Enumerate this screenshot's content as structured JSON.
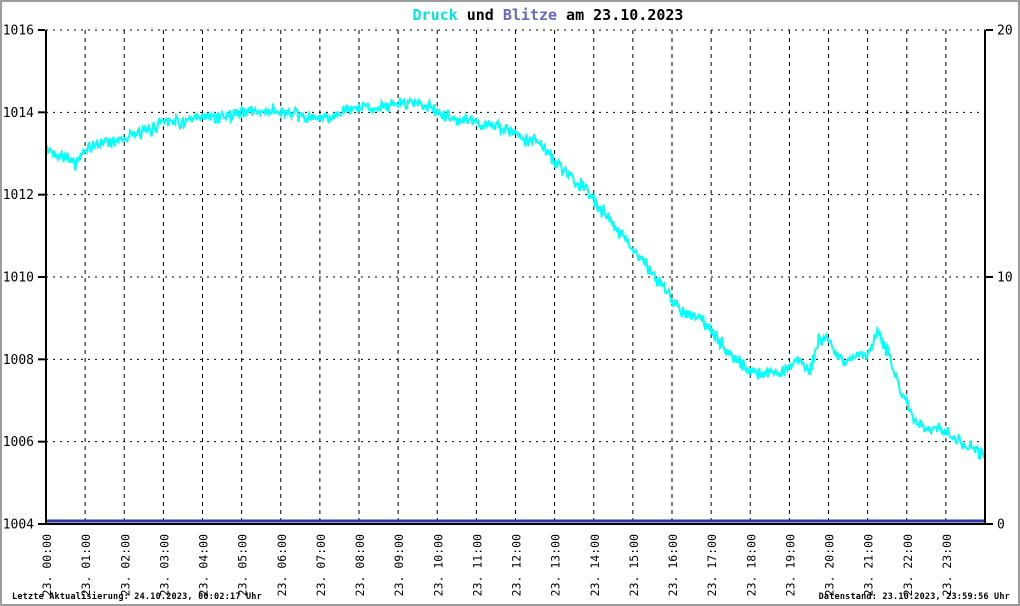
{
  "title": {
    "druck": "Druck",
    "und": " und ",
    "blitze": "Blitze",
    "date": " am 23.10.2023",
    "full": "Druck und Blitze am 23.10.2023"
  },
  "footer": {
    "left": "Letzte Aktualisierung: 24.10.2023, 00:02:17 Uhr",
    "right": "Datenstand: 23.10.2023, 23:59:56 Uhr"
  },
  "colors": {
    "pressure_line": "#00ffff",
    "lightning_line": "#3333a5",
    "title_druck": "#00e5e5",
    "title_blitze": "#6666cc",
    "axis": "#000000",
    "background": "#ffffff",
    "frame_border": "#9c9c9c"
  },
  "chart_data": {
    "type": "line",
    "title": "Druck und Blitze am 23.10.2023",
    "grid": "dotted",
    "legend_position": "title-colored-words",
    "x_axis": {
      "unit": "hour of 23.10.2023",
      "tick_labels": [
        "23. 00:00",
        "23. 01:00",
        "23. 02:00",
        "23. 03:00",
        "23. 04:00",
        "23. 05:00",
        "23. 06:00",
        "23. 07:00",
        "23. 08:00",
        "23. 09:00",
        "23. 10:00",
        "23. 11:00",
        "23. 12:00",
        "23. 13:00",
        "23. 14:00",
        "23. 15:00",
        "23. 16:00",
        "23. 17:00",
        "23. 18:00",
        "23. 19:00",
        "23. 20:00",
        "23. 21:00",
        "23. 22:00",
        "23. 23:00"
      ],
      "label_rotation_deg": -90,
      "range_minutes": [
        0,
        1440
      ]
    },
    "y_axis_left": {
      "series": "Druck",
      "unit": "hPa",
      "range": [
        1004,
        1016
      ],
      "ticks": [
        1004,
        1006,
        1008,
        1010,
        1012,
        1014,
        1016
      ]
    },
    "y_axis_right": {
      "series": "Blitze",
      "unit": "count",
      "range": [
        0,
        20
      ],
      "ticks": [
        0,
        10,
        20
      ]
    },
    "series": [
      {
        "name": "Druck",
        "axis": "left",
        "color": "#00ffff",
        "sample_step_minutes": 15,
        "noise_amplitude_hpa": 0.13,
        "values": [
          1013.1,
          1013.0,
          1012.95,
          1012.75,
          1013.05,
          1013.2,
          1013.3,
          1013.3,
          1013.4,
          1013.45,
          1013.5,
          1013.6,
          1013.85,
          1013.8,
          1013.75,
          1013.8,
          1013.85,
          1013.9,
          1013.9,
          1013.95,
          1014.0,
          1014.05,
          1014.0,
          1014.05,
          1014.0,
          1013.95,
          1013.9,
          1013.85,
          1013.85,
          1013.9,
          1013.95,
          1014.05,
          1014.1,
          1014.15,
          1014.1,
          1014.15,
          1014.2,
          1014.25,
          1014.25,
          1014.15,
          1014.0,
          1013.9,
          1013.8,
          1013.8,
          1013.75,
          1013.7,
          1013.65,
          1013.6,
          1013.45,
          1013.3,
          1013.35,
          1013.15,
          1012.8,
          1012.55,
          1012.3,
          1012.2,
          1011.85,
          1011.6,
          1011.3,
          1011.0,
          1010.7,
          1010.4,
          1010.05,
          1009.8,
          1009.5,
          1009.2,
          1009.05,
          1009.0,
          1008.65,
          1008.4,
          1008.1,
          1007.9,
          1007.75,
          1007.65,
          1007.7,
          1007.65,
          1007.75,
          1008.1,
          1007.65,
          1008.45,
          1008.5,
          1008.1,
          1007.9,
          1008.15,
          1008.05,
          1008.7,
          1008.2,
          1007.5,
          1006.9,
          1006.5,
          1006.35,
          1006.3,
          1006.25,
          1006.1,
          1005.9,
          1005.8,
          1005.7
        ]
      },
      {
        "name": "Blitze",
        "axis": "right",
        "color": "#3333a5",
        "constant_value": 0
      }
    ]
  }
}
